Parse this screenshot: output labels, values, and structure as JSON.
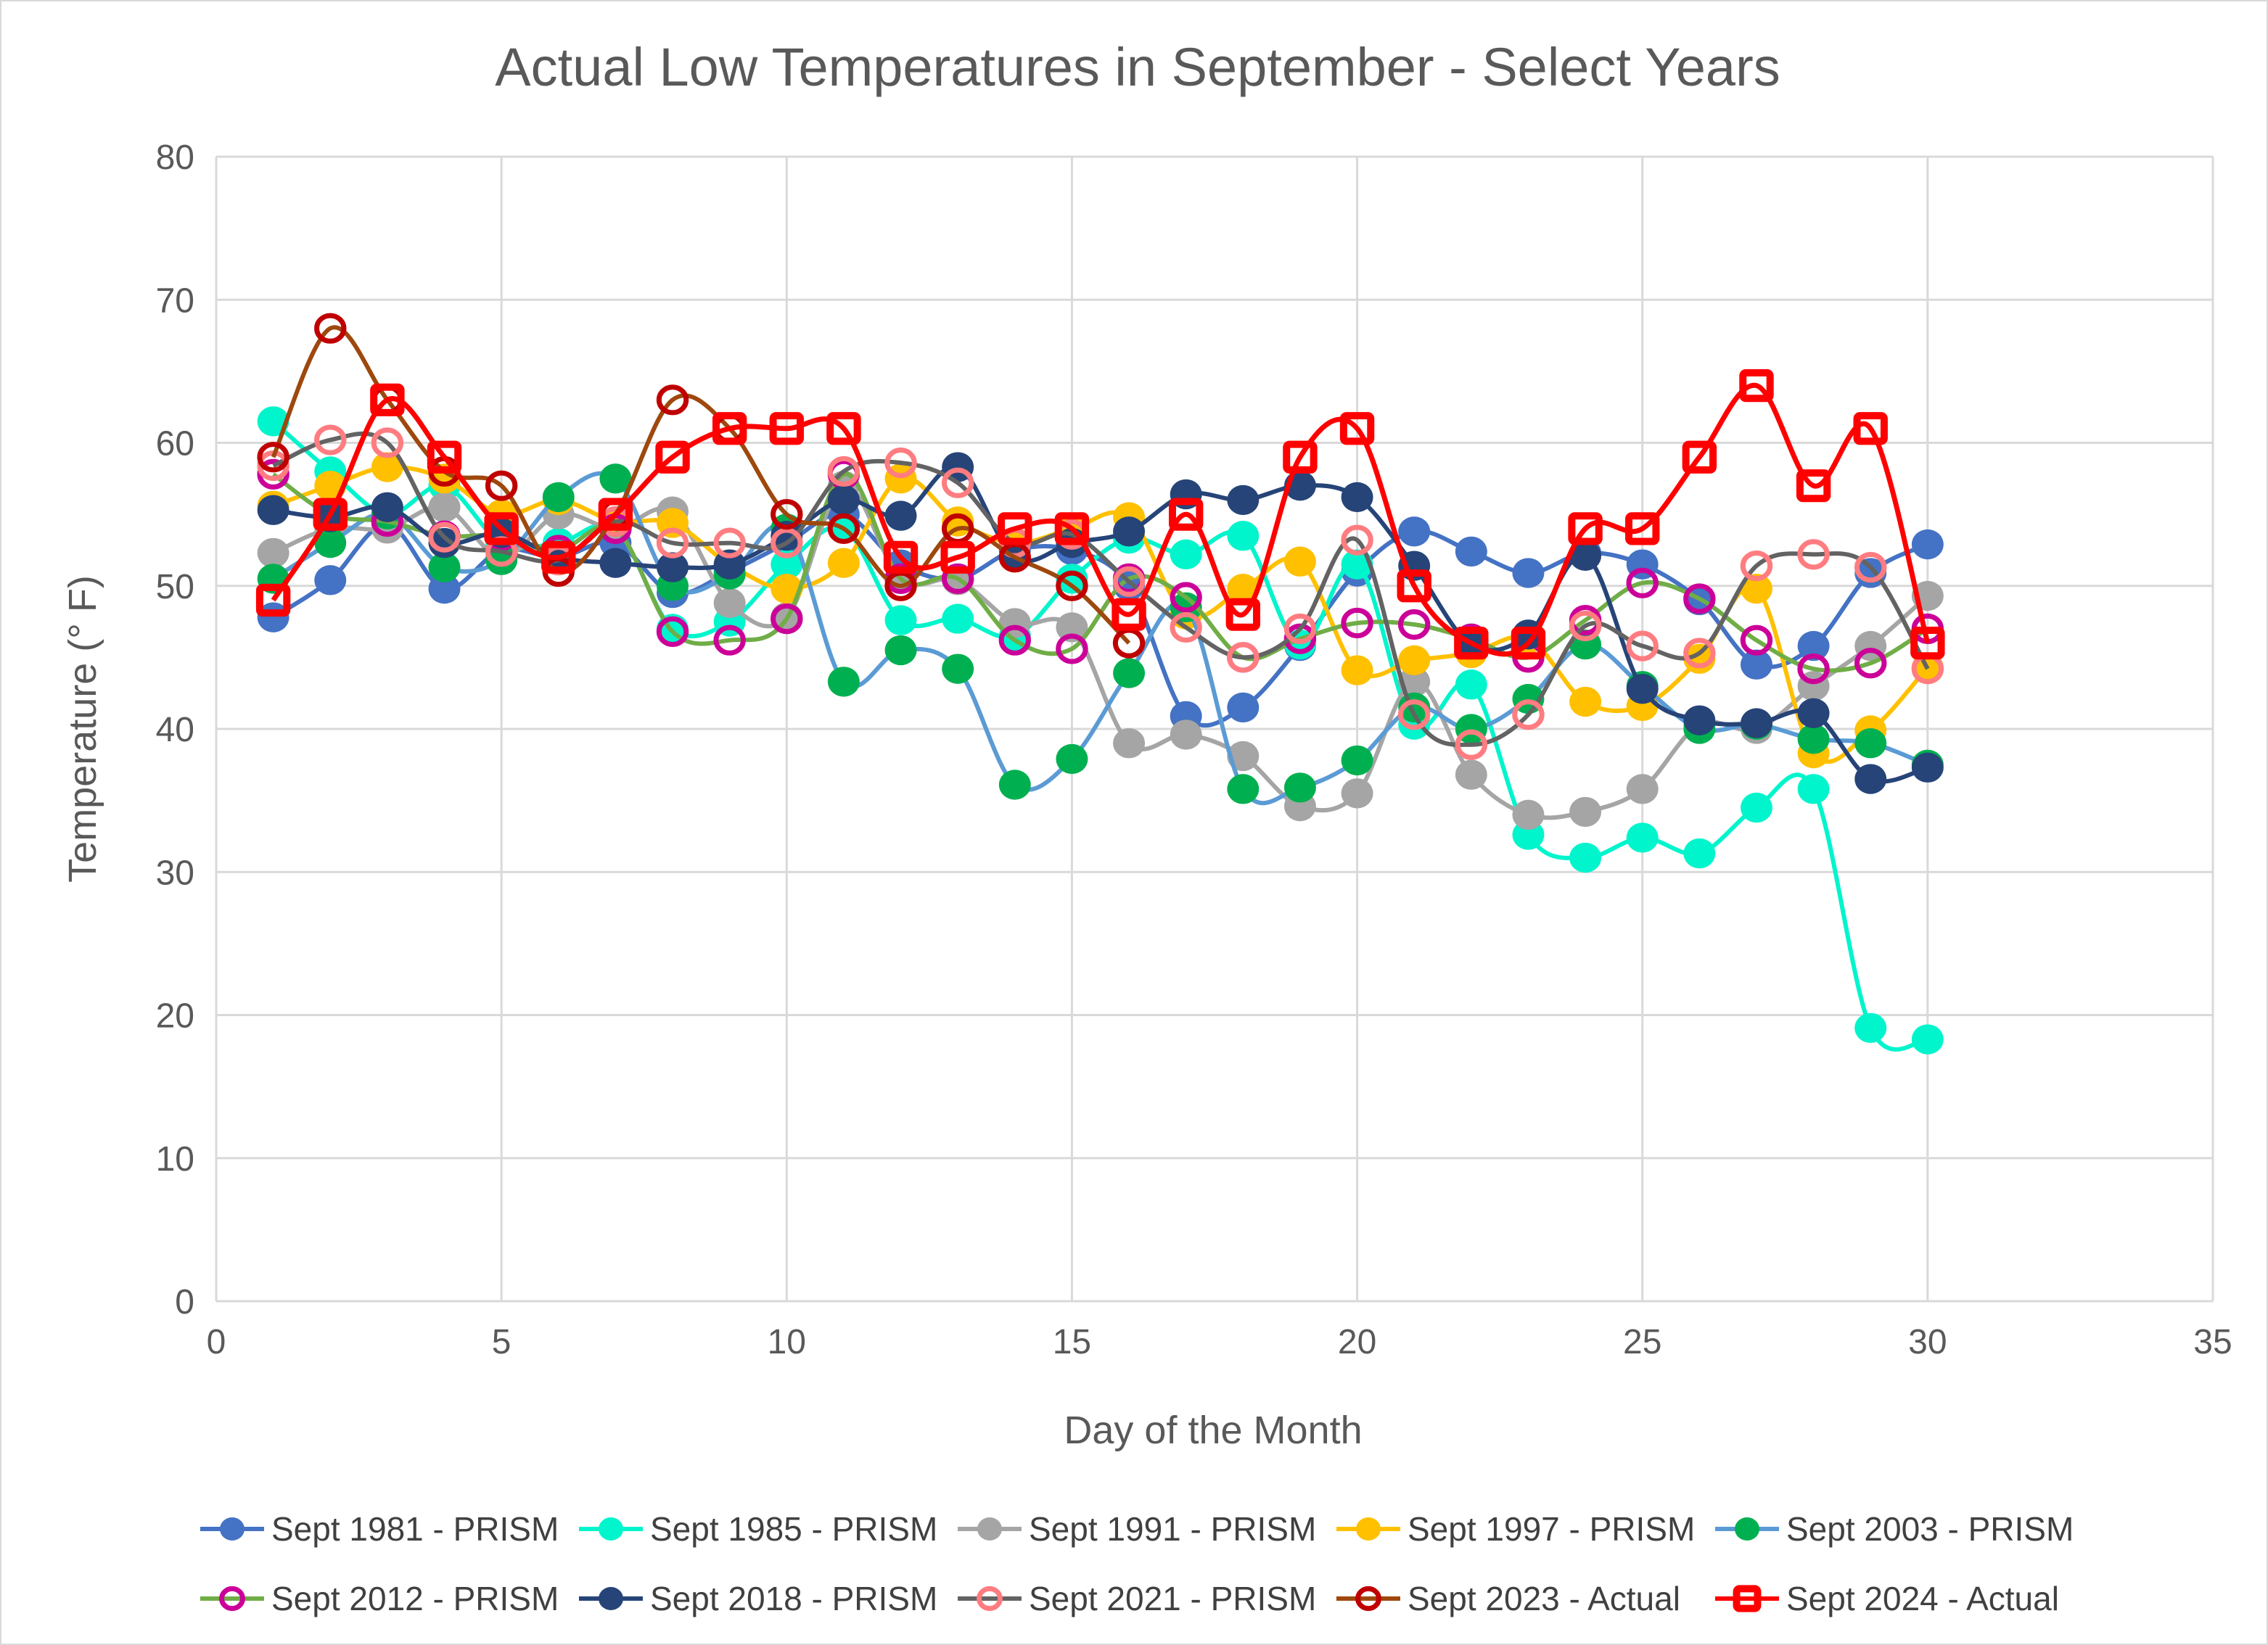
{
  "chart_data": {
    "type": "line",
    "title": "Actual Low Temperatures in September - Select Years",
    "xlabel": "Day of the Month",
    "ylabel": "Temperature (° F)",
    "xlim": [
      0,
      35
    ],
    "ylim": [
      0,
      80
    ],
    "xticks": [
      0,
      5,
      10,
      15,
      20,
      25,
      30,
      35
    ],
    "yticks": [
      0,
      10,
      20,
      30,
      40,
      50,
      60,
      70,
      80
    ],
    "grid": true,
    "smooth": true,
    "legend_position": "bottom",
    "x": [
      1,
      2,
      3,
      4,
      5,
      6,
      7,
      8,
      9,
      10,
      11,
      12,
      13,
      14,
      15,
      16,
      17,
      18,
      19,
      20,
      21,
      22,
      23,
      24,
      25,
      26,
      27,
      28,
      29,
      30
    ],
    "series": [
      {
        "name": "Sept 1981 - PRISM",
        "line_color": "#4472C4",
        "marker_color": "#4472C4",
        "marker": "filled-circle",
        "values": [
          47.8,
          50.4,
          54.3,
          49.8,
          52.5,
          52,
          53,
          49.5,
          51,
          53,
          55,
          51.5,
          50.5,
          52.5,
          52.5,
          50,
          40.9,
          41.5,
          45.8,
          51,
          53.8,
          52.4,
          50.9,
          52.3,
          51.5,
          49,
          44.5,
          45.8,
          50.9,
          52.9
        ]
      },
      {
        "name": "Sept 1985 - PRISM",
        "line_color": "#00F5CC",
        "marker_color": "#00F5CC",
        "marker": "filled-circle",
        "values": [
          61.5,
          58,
          55,
          57,
          53,
          53,
          54,
          47,
          47.5,
          51.5,
          54,
          47.6,
          47.7,
          46.5,
          50.5,
          53.3,
          52.2,
          53.5,
          45.9,
          51.5,
          40.3,
          43.1,
          32.6,
          31,
          32.4,
          31.3,
          34.5,
          35.8,
          19.1,
          18.3
        ]
      },
      {
        "name": "Sept 1991 - PRISM",
        "line_color": "#A5A5A5",
        "marker_color": "#A5A5A5",
        "marker": "filled-circle",
        "values": [
          52.3,
          54,
          54,
          55.5,
          52,
          55,
          54,
          55.2,
          48.8,
          47.8,
          57,
          50.5,
          50.4,
          47.4,
          47.1,
          39,
          39.6,
          38.1,
          34.6,
          35.5,
          43.3,
          36.8,
          34,
          34.2,
          35.8,
          40.3,
          40,
          43,
          45.8,
          49.3
        ]
      },
      {
        "name": "Sept 1997 - PRISM",
        "line_color": "#FFC000",
        "marker_color": "#FFC000",
        "marker": "filled-circle",
        "values": [
          55.6,
          57,
          58.3,
          57.5,
          55,
          56,
          54.5,
          54.4,
          51.5,
          49.8,
          51.6,
          57.5,
          54.5,
          53,
          54,
          54.8,
          48,
          49.8,
          51.7,
          44.1,
          44.8,
          45.3,
          46.3,
          41.9,
          41.6,
          44.9,
          49.8,
          38.3,
          39.9,
          44.3
        ]
      },
      {
        "name": "Sept 2003 - PRISM",
        "line_color": "#5B9BD5",
        "marker_color": "#00B050",
        "marker": "filled-circle",
        "values": [
          50.5,
          53,
          55,
          51.3,
          51.8,
          56.2,
          57.5,
          50,
          50.8,
          54,
          43.3,
          45.5,
          44.2,
          36.1,
          37.9,
          43.9,
          48.5,
          35.8,
          35.9,
          37.8,
          41.5,
          40,
          42.1,
          45.9,
          43,
          40,
          40.3,
          39.3,
          39,
          37.5
        ]
      },
      {
        "name": "Sept 2012 - PRISM",
        "line_color": "#70AD47",
        "marker_color": "#CC0099",
        "marker": "open-circle",
        "values": [
          57.8,
          55,
          54.5,
          53.5,
          53.5,
          52.5,
          54,
          46.8,
          46.2,
          47.7,
          57.8,
          50.5,
          50.5,
          46.2,
          45.6,
          50.5,
          49.2,
          45,
          46.3,
          47.4,
          47.3,
          46.3,
          45,
          47.6,
          50.2,
          49.1,
          46.2,
          44.2,
          44.6,
          47
        ]
      },
      {
        "name": "Sept 2018 - PRISM",
        "line_color": "#264478",
        "marker_color": "#264478",
        "marker": "filled-circle",
        "values": [
          55.3,
          54.8,
          55.5,
          53,
          53.7,
          52,
          51.6,
          51.3,
          51.5,
          53.5,
          56,
          54.9,
          58.3,
          52,
          53,
          53.8,
          56.4,
          56,
          57,
          56.2,
          51.4,
          45.9,
          46.6,
          52.1,
          42.8,
          40.6,
          40.4,
          41.1,
          36.5,
          37.3
        ]
      },
      {
        "name": "Sept 2021 - PRISM",
        "line_color": "#636363",
        "marker_color": "#FF7C80",
        "marker": "open-circle",
        "values": [
          58.4,
          60.2,
          60,
          53.4,
          52.4,
          51.8,
          54.5,
          53,
          53,
          53,
          58,
          58.6,
          57.2,
          53,
          53.6,
          50.3,
          47.1,
          45,
          47,
          53.2,
          41,
          38.9,
          41,
          47.2,
          45.8,
          45.3,
          51.4,
          52.2,
          51.3,
          44.2
        ]
      },
      {
        "name": "Sept 2023 - Actual",
        "line_color": "#9E480E",
        "marker_color": "#C00000",
        "marker": "open-circle",
        "values": [
          59,
          68,
          63,
          58,
          57,
          51,
          55,
          63,
          61,
          55,
          54,
          50,
          54,
          52,
          50,
          46,
          null,
          null,
          null,
          null,
          null,
          null,
          null,
          null,
          null,
          null,
          null,
          null,
          null,
          null
        ]
      },
      {
        "name": "Sept 2024 - Actual",
        "line_color": "#FF0000",
        "marker_color": "#FF0000",
        "marker": "open-square",
        "values": [
          49,
          55,
          63,
          59,
          54,
          52,
          55,
          59,
          61,
          61,
          61,
          52,
          52,
          54,
          54,
          48,
          55,
          48,
          59,
          61,
          50,
          46,
          46,
          54,
          54,
          59,
          64,
          57,
          61,
          46
        ]
      }
    ]
  }
}
